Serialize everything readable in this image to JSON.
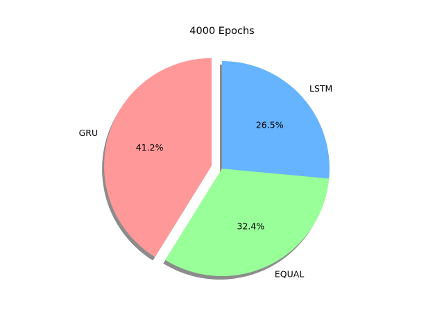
{
  "chart_data": {
    "type": "pie",
    "title": "4000 Epochs",
    "slices": [
      {
        "label": "GRU",
        "value": 41.2,
        "pct_label": "41.2%",
        "color": "#ff9999",
        "exploded": true
      },
      {
        "label": "EQUAL",
        "value": 32.4,
        "pct_label": "32.4%",
        "color": "#99ff99",
        "exploded": false
      },
      {
        "label": "LSTM",
        "value": 26.5,
        "pct_label": "26.5%",
        "color": "#66b3ff",
        "exploded": false
      }
    ],
    "start_angle_deg": 90,
    "direction": "counterclockwise",
    "shadow": true,
    "legend": "none"
  }
}
